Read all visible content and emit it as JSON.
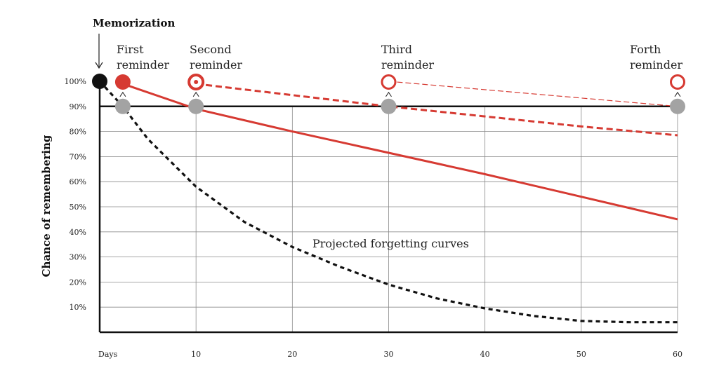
{
  "chart_data": {
    "type": "line",
    "title": "Memorization",
    "xlabel": "",
    "ylabel": "Chance of remembering",
    "x_start_label": "Days",
    "xlim": [
      0,
      60
    ],
    "ylim": [
      0,
      100
    ],
    "x_ticks": [
      10,
      20,
      30,
      40,
      50,
      60
    ],
    "y_ticks": [
      10,
      20,
      30,
      40,
      50,
      60,
      70,
      80,
      90,
      100
    ],
    "y_tick_suffix": "%",
    "grid": true,
    "annotation": "Projected forgetting curves",
    "reminders": [
      {
        "line1": "First",
        "line2": "reminder",
        "day": 2.4
      },
      {
        "line1": "Second",
        "line2": "reminder",
        "day": 10
      },
      {
        "line1": "Third",
        "line2": "reminder",
        "day": 30
      },
      {
        "line1": "Forth",
        "line2": "reminder",
        "day": 60
      }
    ],
    "series": [
      {
        "style": "dotted-black",
        "color": "#111111",
        "x": [
          0,
          2.4,
          5,
          10,
          15,
          20,
          25,
          30,
          35,
          40,
          45,
          50,
          55,
          60
        ],
        "y": [
          100,
          90,
          77,
          58,
          44,
          34,
          26,
          19,
          13.5,
          9.5,
          6.5,
          4.5,
          4,
          4
        ]
      },
      {
        "style": "solid-red",
        "color": "#d63a32",
        "x": [
          2.4,
          10,
          20,
          30,
          40,
          50,
          60
        ],
        "y": [
          99,
          89,
          80,
          71.5,
          63,
          54,
          45
        ]
      },
      {
        "style": "dashed-red",
        "color": "#d63a32",
        "x": [
          10,
          20,
          30,
          40,
          50,
          60
        ],
        "y": [
          99,
          94.5,
          90,
          86,
          82,
          78.5
        ]
      },
      {
        "style": "thin-dashed-red",
        "color": "#d63a32",
        "x": [
          30,
          60
        ],
        "y": [
          100,
          90
        ]
      }
    ],
    "colors": {
      "red": "#d63a32",
      "gray": "#a3a3a3",
      "black": "#111111"
    }
  }
}
